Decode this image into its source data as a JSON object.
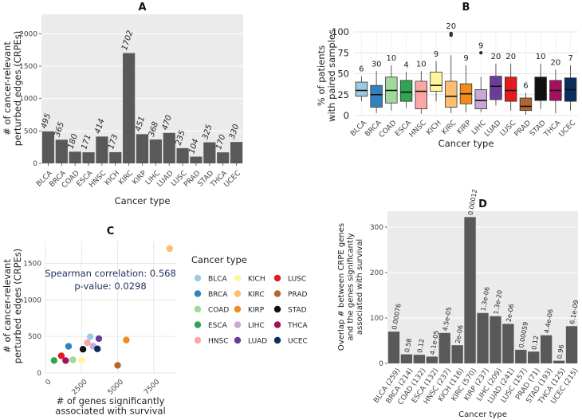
{
  "chart_data": [
    {
      "panel": "A",
      "type": "bar",
      "title": "A",
      "xlabel": "Cancer type",
      "ylabel": "# of cancer-relevant perturbed edges (CRPEs)",
      "ylim": [
        0,
        2300
      ],
      "yticks": [
        0,
        500,
        1000,
        1500,
        2000
      ],
      "categories": [
        "BLCA",
        "BRCA",
        "COAD",
        "ESCA",
        "HNSC",
        "KICH",
        "KIRC",
        "KIRP",
        "LIHC",
        "LUAD",
        "LUSC",
        "PRAD",
        "STAD",
        "THCA",
        "UCEC"
      ],
      "values": [
        495,
        365,
        180,
        171,
        414,
        173,
        1702,
        451,
        368,
        470,
        235,
        104,
        325,
        170,
        330
      ],
      "labels": [
        "495",
        "365",
        "180",
        "171",
        "414",
        "173",
        "1702",
        "451",
        "368",
        "470",
        "235",
        "104",
        "325",
        "170",
        "330"
      ],
      "bar_color": "#595959"
    },
    {
      "panel": "B",
      "type": "box",
      "title": "B",
      "xlabel": "Cancer type",
      "ylabel": "% of patients with paired samples",
      "ylim": [
        0,
        100
      ],
      "yticks": [
        0,
        25,
        50,
        75,
        100
      ],
      "categories": [
        "BLCA",
        "BRCA",
        "COAD",
        "ESCA",
        "HNSC",
        "KICH",
        "KIRC",
        "KIRP",
        "LIHC",
        "LUAD",
        "LUSC",
        "PRAD",
        "STAD",
        "THCA",
        "UCEC"
      ],
      "counts": [
        "6",
        "30",
        "10",
        "4",
        "10",
        "9",
        "20",
        "9",
        "9",
        "20",
        "20",
        "6",
        "10",
        "20",
        "7"
      ],
      "colors": [
        "#9ECAE1",
        "#3182BD",
        "#A1D99B",
        "#31A354",
        "#FCA5A5",
        "#FFF59D",
        "#FDBF6F",
        "#F08C1A",
        "#C9A7D6",
        "#6A3D9A",
        "#E41A1C",
        "#B5642D",
        "#111111",
        "#A50F5F",
        "#0B2E5C"
      ],
      "boxes": [
        {
          "min": 17,
          "q1": 23,
          "med": 30,
          "q3": 40,
          "max": 47,
          "outliers": []
        },
        {
          "min": 3,
          "q1": 10,
          "med": 25,
          "q3": 36,
          "max": 53,
          "outliers": []
        },
        {
          "min": 6,
          "q1": 15,
          "med": 30,
          "q3": 46,
          "max": 60,
          "outliers": []
        },
        {
          "min": 9,
          "q1": 17,
          "med": 28,
          "q3": 42,
          "max": 52,
          "outliers": []
        },
        {
          "min": 2,
          "q1": 8,
          "med": 29,
          "q3": 41,
          "max": 53,
          "outliers": []
        },
        {
          "min": 17,
          "q1": 29,
          "med": 36,
          "q3": 52,
          "max": 65,
          "outliers": []
        },
        {
          "min": 3,
          "q1": 10,
          "med": 23,
          "q3": 41,
          "max": 72,
          "outliers": [
            96,
            98
          ]
        },
        {
          "min": 4,
          "q1": 14,
          "med": 26,
          "q3": 38,
          "max": 60,
          "outliers": []
        },
        {
          "min": 4,
          "q1": 8,
          "med": 18,
          "q3": 31,
          "max": 46,
          "outliers": [
            75
          ]
        },
        {
          "min": 12,
          "q1": 19,
          "med": 35,
          "q3": 47,
          "max": 62,
          "outliers": []
        },
        {
          "min": 6,
          "q1": 17,
          "med": 30,
          "q3": 46,
          "max": 62,
          "outliers": []
        },
        {
          "min": 1,
          "q1": 6,
          "med": 11,
          "q3": 21,
          "max": 27,
          "outliers": []
        },
        {
          "min": 8,
          "q1": 18,
          "med": 33,
          "q3": 46,
          "max": 62,
          "outliers": []
        },
        {
          "min": 3,
          "q1": 18,
          "med": 30,
          "q3": 42,
          "max": 55,
          "outliers": []
        },
        {
          "min": 6,
          "q1": 17,
          "med": 31,
          "q3": 45,
          "max": 60,
          "outliers": []
        }
      ]
    },
    {
      "panel": "C",
      "type": "scatter",
      "title": "C",
      "xlabel": "# of genes significantly associated with survival",
      "ylabel": "# of cancer-relevant perturbed edges (CRPEs)",
      "xlim": [
        0,
        9000
      ],
      "ylim": [
        0,
        1800
      ],
      "xticks": [
        0,
        2500,
        5000,
        7500
      ],
      "yticks": [
        0,
        500,
        1000,
        1500
      ],
      "annotation_line1": "Spearman correlation: 0.568",
      "annotation_line2": "p-value: 0.0298",
      "legend_title": "Cancer type",
      "points": [
        {
          "label": "BLCA",
          "x": 3100,
          "y": 495,
          "color": "#9ECAE1"
        },
        {
          "label": "BRCA",
          "x": 1600,
          "y": 365,
          "color": "#3182BD"
        },
        {
          "label": "COAD",
          "x": 1900,
          "y": 180,
          "color": "#A1D99B"
        },
        {
          "label": "ESCA",
          "x": 600,
          "y": 171,
          "color": "#31A354"
        },
        {
          "label": "HNSC",
          "x": 2900,
          "y": 414,
          "color": "#FCA5A5"
        },
        {
          "label": "KICH",
          "x": 2500,
          "y": 173,
          "color": "#FFF59D"
        },
        {
          "label": "KIRC",
          "x": 8600,
          "y": 1702,
          "color": "#FDBF6F"
        },
        {
          "label": "KIRP",
          "x": 5600,
          "y": 451,
          "color": "#F08C1A"
        },
        {
          "label": "LIHC",
          "x": 3300,
          "y": 368,
          "color": "#C9A7D6"
        },
        {
          "label": "LUAD",
          "x": 3700,
          "y": 470,
          "color": "#6A3D9A"
        },
        {
          "label": "LUSC",
          "x": 1100,
          "y": 235,
          "color": "#E41A1C"
        },
        {
          "label": "PRAD",
          "x": 5000,
          "y": 104,
          "color": "#B5642D"
        },
        {
          "label": "STAD",
          "x": 2600,
          "y": 325,
          "color": "#111111"
        },
        {
          "label": "THCA",
          "x": 1400,
          "y": 170,
          "color": "#A50F5F"
        },
        {
          "label": "UCEC",
          "x": 3600,
          "y": 330,
          "color": "#0B2E5C"
        }
      ]
    },
    {
      "panel": "D",
      "type": "bar",
      "title": "D",
      "xlabel": "Cancer type",
      "ylabel": "Overlap # between CRPE genes and the genes significantly associated with survival",
      "ylim": [
        0,
        335
      ],
      "yticks": [
        0,
        100,
        200,
        300
      ],
      "categories": [
        "BLCA (259)",
        "BRCA (214)",
        "COAD (132)",
        "ESCA (132)",
        "HNSC (237)",
        "KICH (116)",
        "KIRC (570)",
        "KIRP (237)",
        "LIHC (209)",
        "LUAD (241)",
        "LUSC (157)",
        "PRAD (71)",
        "STAD (193)",
        "THCA (125)",
        "UCEC (215)"
      ],
      "values": [
        70,
        20,
        19,
        15,
        67,
        40,
        322,
        111,
        104,
        87,
        30,
        26,
        62,
        6,
        82
      ],
      "labels": [
        "0.00076",
        "0.58",
        "0.12",
        "4.1e-05",
        "4.5e-05",
        "2e-06",
        "0.00012",
        "1.3e-06",
        "1.3e-20",
        "2e-06",
        "0.00059",
        "0.12",
        "4.4e-06",
        "0.96",
        "6.1e-09"
      ],
      "bar_color": "#595959"
    }
  ]
}
